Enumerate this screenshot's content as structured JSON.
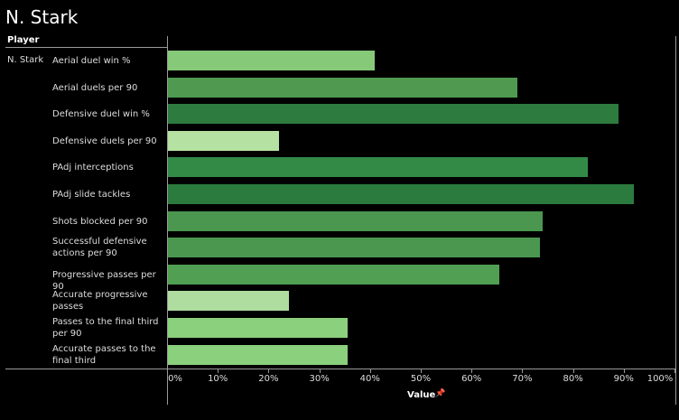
{
  "title": "N. Stark",
  "chart_data": {
    "type": "bar",
    "orientation": "horizontal",
    "row_header": "Player",
    "player": "N. Stark",
    "categories": [
      "Aerial duel win %",
      "Aerial duels per 90",
      "Defensive duel win %",
      "Defensive duels per 90",
      "PAdj interceptions",
      "PAdj slide tackles",
      "Shots blocked per 90",
      "Successful defensive actions per 90",
      "Progressive passes per 90",
      "Accurate progressive passes",
      "Passes to the final third per 90",
      "Accurate passes to the final third"
    ],
    "values": [
      41,
      69,
      89,
      22,
      83,
      92,
      74,
      73.5,
      65.5,
      24,
      35.5,
      35.5
    ],
    "colors": [
      "#86c978",
      "#4f9a50",
      "#2e7b40",
      "#b5e2a2",
      "#338a47",
      "#2b7b3e",
      "#4b974f",
      "#4b974f",
      "#519f52",
      "#aedd9f",
      "#8bd07c",
      "#8bd07c"
    ],
    "xlabel": "Value",
    "xlim": [
      0,
      100
    ],
    "xticks": [
      "0%",
      "10%",
      "20%",
      "30%",
      "40%",
      "50%",
      "60%",
      "70%",
      "80%",
      "90%",
      "100%"
    ],
    "grid": false
  }
}
